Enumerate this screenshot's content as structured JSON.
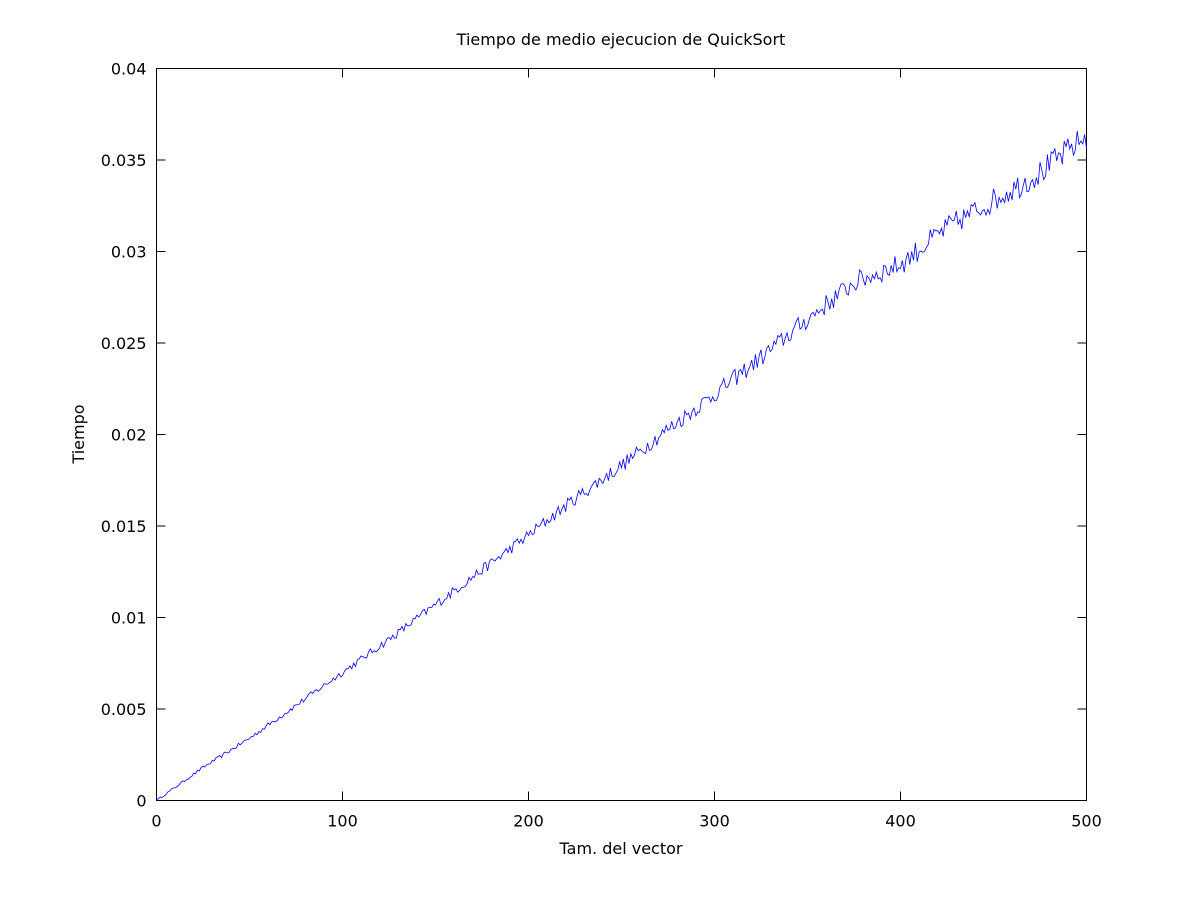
{
  "chart_data": {
    "type": "line",
    "title": "Tiempo de medio ejecucion de QuickSort",
    "xlabel": "Tam. del vector",
    "ylabel": "Tiempo",
    "xlim": [
      0,
      500
    ],
    "ylim": [
      0,
      0.04
    ],
    "xticks": [
      0,
      100,
      200,
      300,
      400,
      500
    ],
    "xtick_labels": [
      "0",
      "100",
      "200",
      "300",
      "400",
      "500"
    ],
    "yticks": [
      0,
      0.005,
      0.01,
      0.015,
      0.02,
      0.025,
      0.03,
      0.035,
      0.04
    ],
    "ytick_labels": [
      "0",
      "0.005",
      "0.01",
      "0.015",
      "0.02",
      "0.025",
      "0.03",
      "0.035",
      "0.04"
    ],
    "grid": false,
    "series": [
      {
        "color": "#0000ff",
        "x": [
          0,
          25,
          50,
          75,
          100,
          125,
          150,
          175,
          200,
          225,
          250,
          275,
          300,
          325,
          350,
          375,
          400,
          425,
          450,
          475,
          500
        ],
        "y": [
          0.0,
          0.0018,
          0.0034,
          0.0052,
          0.007,
          0.0088,
          0.0107,
          0.0126,
          0.0145,
          0.0165,
          0.0183,
          0.0203,
          0.0222,
          0.0242,
          0.0263,
          0.0283,
          0.0293,
          0.0313,
          0.0328,
          0.0343,
          0.0363
        ]
      }
    ]
  }
}
